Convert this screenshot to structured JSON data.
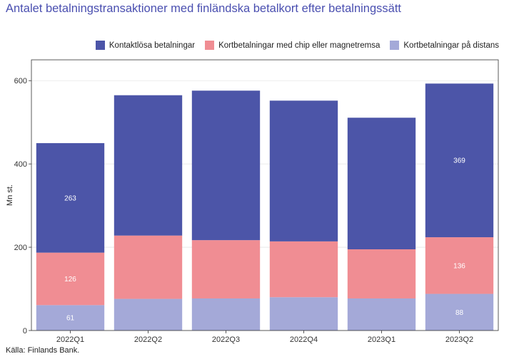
{
  "title": "Antalet betalningstransaktioner med finländska betalkort efter betalningssätt",
  "source": "Källa: Finlands Bank.",
  "chart_data": {
    "type": "bar",
    "stacked": true,
    "ylabel": "Mn st.",
    "ylim": [
      0,
      650
    ],
    "yticks": [
      0,
      200,
      400,
      600
    ],
    "categories": [
      "2022Q1",
      "2022Q2",
      "2022Q3",
      "2022Q4",
      "2023Q1",
      "2023Q2"
    ],
    "series": [
      {
        "name": "Kortbetalningar på distans",
        "color": "#a4a9d8",
        "values": [
          61,
          76,
          77,
          80,
          77,
          88
        ]
      },
      {
        "name": "Kortbetalningar med chip eller magnetremsa",
        "color": "#f08d93",
        "values": [
          126,
          152,
          140,
          134,
          118,
          136
        ]
      },
      {
        "name": "Kontaktlösa betalningar",
        "color": "#4c55a8",
        "values": [
          263,
          337,
          359,
          338,
          316,
          369
        ]
      }
    ],
    "data_labels": [
      {
        "category": "2022Q1",
        "series": 0,
        "text": "61"
      },
      {
        "category": "2022Q1",
        "series": 1,
        "text": "126"
      },
      {
        "category": "2022Q1",
        "series": 2,
        "text": "263"
      },
      {
        "category": "2023Q2",
        "series": 0,
        "text": "88"
      },
      {
        "category": "2023Q2",
        "series": 1,
        "text": "136"
      },
      {
        "category": "2023Q2",
        "series": 2,
        "text": "369"
      }
    ],
    "legend": {
      "position": "top-right",
      "order": [
        "Kontaktlösa betalningar",
        "Kortbetalningar med chip eller magnetremsa",
        "Kortbetalningar på distans"
      ]
    },
    "grid": true
  }
}
